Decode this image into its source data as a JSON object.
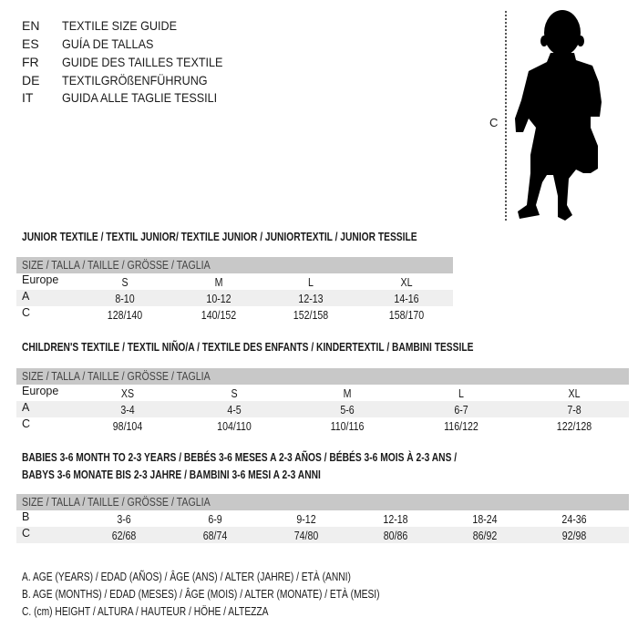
{
  "languages": [
    {
      "code": "EN",
      "name": "TEXTILE SIZE GUIDE"
    },
    {
      "code": "ES",
      "name": "GUÍA DE TALLAS"
    },
    {
      "code": "FR",
      "name": "GUIDE DES TAILLES TEXTILE"
    },
    {
      "code": "DE",
      "name": "TEXTILGRÖßENFÜHRUNG"
    },
    {
      "code": "IT",
      "name": "GUIDA ALLE TAGLIE TESSILI"
    }
  ],
  "figure": {
    "measure_label": "C"
  },
  "junior": {
    "title": "JUNIOR TEXTILE / TEXTIL JUNIOR/ TEXTILE JUNIOR / JUNIORTEXTIL / JUNIOR TESSILE",
    "header": "SIZE / TALLA / TAILLE / GRÖSSE / TAGLIA",
    "rows": [
      {
        "label": "Europe",
        "values": [
          "S",
          "M",
          "L",
          "XL"
        ]
      },
      {
        "label": "A",
        "values": [
          "8-10",
          "10-12",
          "12-13",
          "14-16"
        ]
      },
      {
        "label": "C",
        "values": [
          "128/140",
          "140/152",
          "152/158",
          "158/170"
        ]
      }
    ]
  },
  "children": {
    "title": "CHILDREN'S TEXTILE / TEXTIL NIÑO/A / TEXTILE DES ENFANTS / KINDERTEXTIL / BAMBINI TESSILE",
    "header": "SIZE / TALLA / TAILLE / GRÖSSE / TAGLIA",
    "rows": [
      {
        "label": "Europe",
        "values": [
          "XS",
          "S",
          "M",
          "L",
          "XL"
        ]
      },
      {
        "label": "A",
        "values": [
          "3-4",
          "4-5",
          "5-6",
          "6-7",
          "7-8"
        ]
      },
      {
        "label": "C",
        "values": [
          "98/104",
          "104/110",
          "110/116",
          "116/122",
          "122/128"
        ]
      }
    ]
  },
  "babies": {
    "title_line1": "BABIES 3-6 MONTH TO 2-3 YEARS / BEBÉS 3-6 MESES A 2-3 AÑOS / BÉBÉS 3-6 MOIS À 2-3 ANS /",
    "title_line2": "BABYS 3-6 MONATE BIS 2-3 JAHRE / BAMBINI 3-6 MESI A 2-3 ANNI",
    "header": "SIZE / TALLA / TAILLE / GRÖSSE / TAGLIA",
    "rows": [
      {
        "label": "B",
        "values": [
          "3-6",
          "6-9",
          "9-12",
          "12-18",
          "18-24",
          "24-36"
        ]
      },
      {
        "label": "C",
        "values": [
          "62/68",
          "68/74",
          "74/80",
          "80/86",
          "86/92",
          "92/98"
        ]
      }
    ]
  },
  "legend": [
    "A. AGE (YEARS) / EDAD (AÑOS) / ÂGE (ANS) / ALTER (JAHRE) / ETÀ (ANNI)",
    "B. AGE (MONTHS) / EDAD (MESES) / ÂGE (MOIS) / ALTER (MONATE) / ETÀ (MESI)",
    "C. (cm) HEIGHT / ALTURA / HAUTEUR / HÖHE / ALTEZZA"
  ]
}
